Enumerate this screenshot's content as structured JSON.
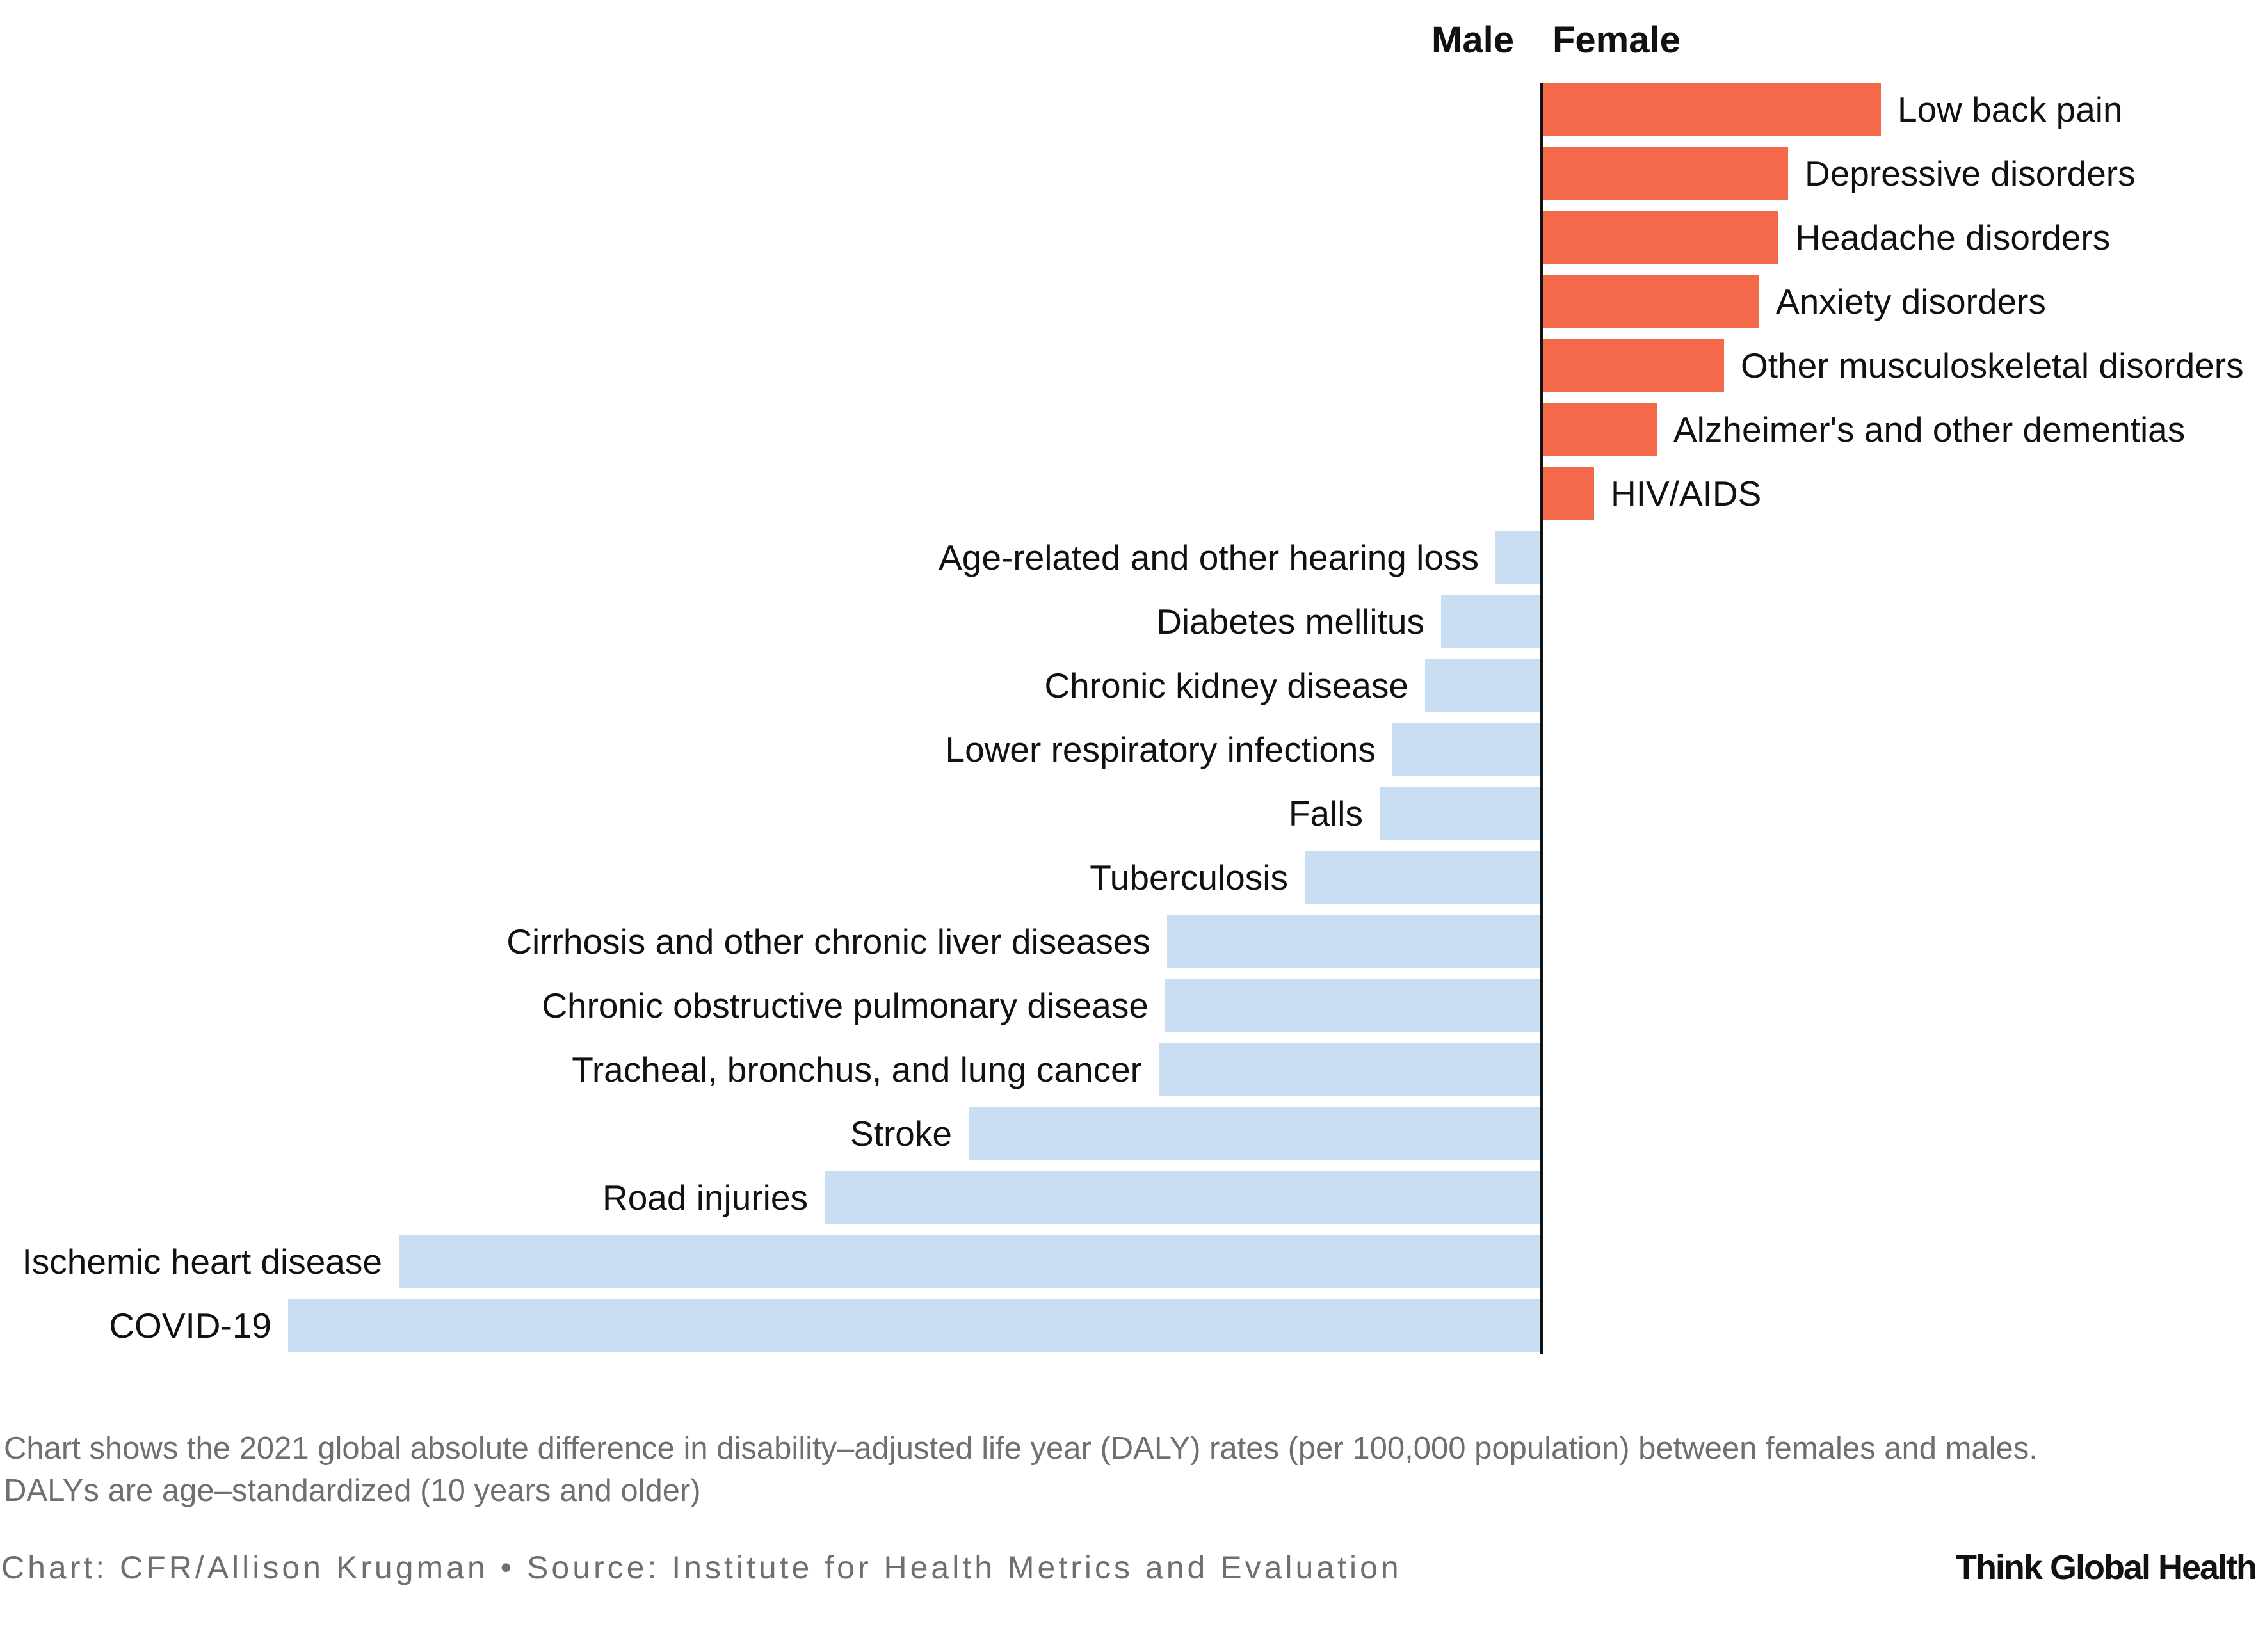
{
  "chart_data": {
    "type": "bar",
    "orientation": "horizontal-diverging",
    "series": [
      {
        "name": "Male",
        "color": "#c9ddf3"
      },
      {
        "name": "Female",
        "color": "#f4694a"
      }
    ],
    "categories": [
      {
        "label": "Low back pain",
        "value": 530
      },
      {
        "label": "Depressive disorders",
        "value": 385
      },
      {
        "label": "Headache disorders",
        "value": 370
      },
      {
        "label": "Anxiety disorders",
        "value": 340
      },
      {
        "label": "Other musculoskeletal disorders",
        "value": 285
      },
      {
        "label": "Alzheimer's and other dementias",
        "value": 180
      },
      {
        "label": "HIV/AIDS",
        "value": 82
      },
      {
        "label": "Age-related and other hearing loss",
        "value": -72
      },
      {
        "label": "Diabetes mellitus",
        "value": -157
      },
      {
        "label": "Chronic kidney disease",
        "value": -182
      },
      {
        "label": "Lower respiratory infections",
        "value": -233
      },
      {
        "label": "Falls",
        "value": -253
      },
      {
        "label": "Tuberculosis",
        "value": -370
      },
      {
        "label": "Cirrhosis and other chronic liver diseases",
        "value": -585
      },
      {
        "label": "Chronic obstructive pulmonary disease",
        "value": -588
      },
      {
        "label": "Tracheal, bronchus, and lung cancer",
        "value": -598
      },
      {
        "label": "Stroke",
        "value": -895
      },
      {
        "label": "Road injuries",
        "value": -1120
      },
      {
        "label": "Ischemic heart disease",
        "value": -1785
      },
      {
        "label": "COVID-19",
        "value": -1958
      }
    ],
    "header_left": "Male",
    "header_right": "Female",
    "axis_color": "#111111"
  },
  "footnote": {
    "line1": "Chart shows the 2021 global absolute difference in disability–adjusted life year (DALY) rates (per 100,000 population) between females and males.",
    "line2": "DALYs are age–standardized (10 years and older)"
  },
  "credit": "Chart: CFR/Allison Krugman • Source: Institute for Health Metrics and Evaluation",
  "brand": "Think Global Health"
}
